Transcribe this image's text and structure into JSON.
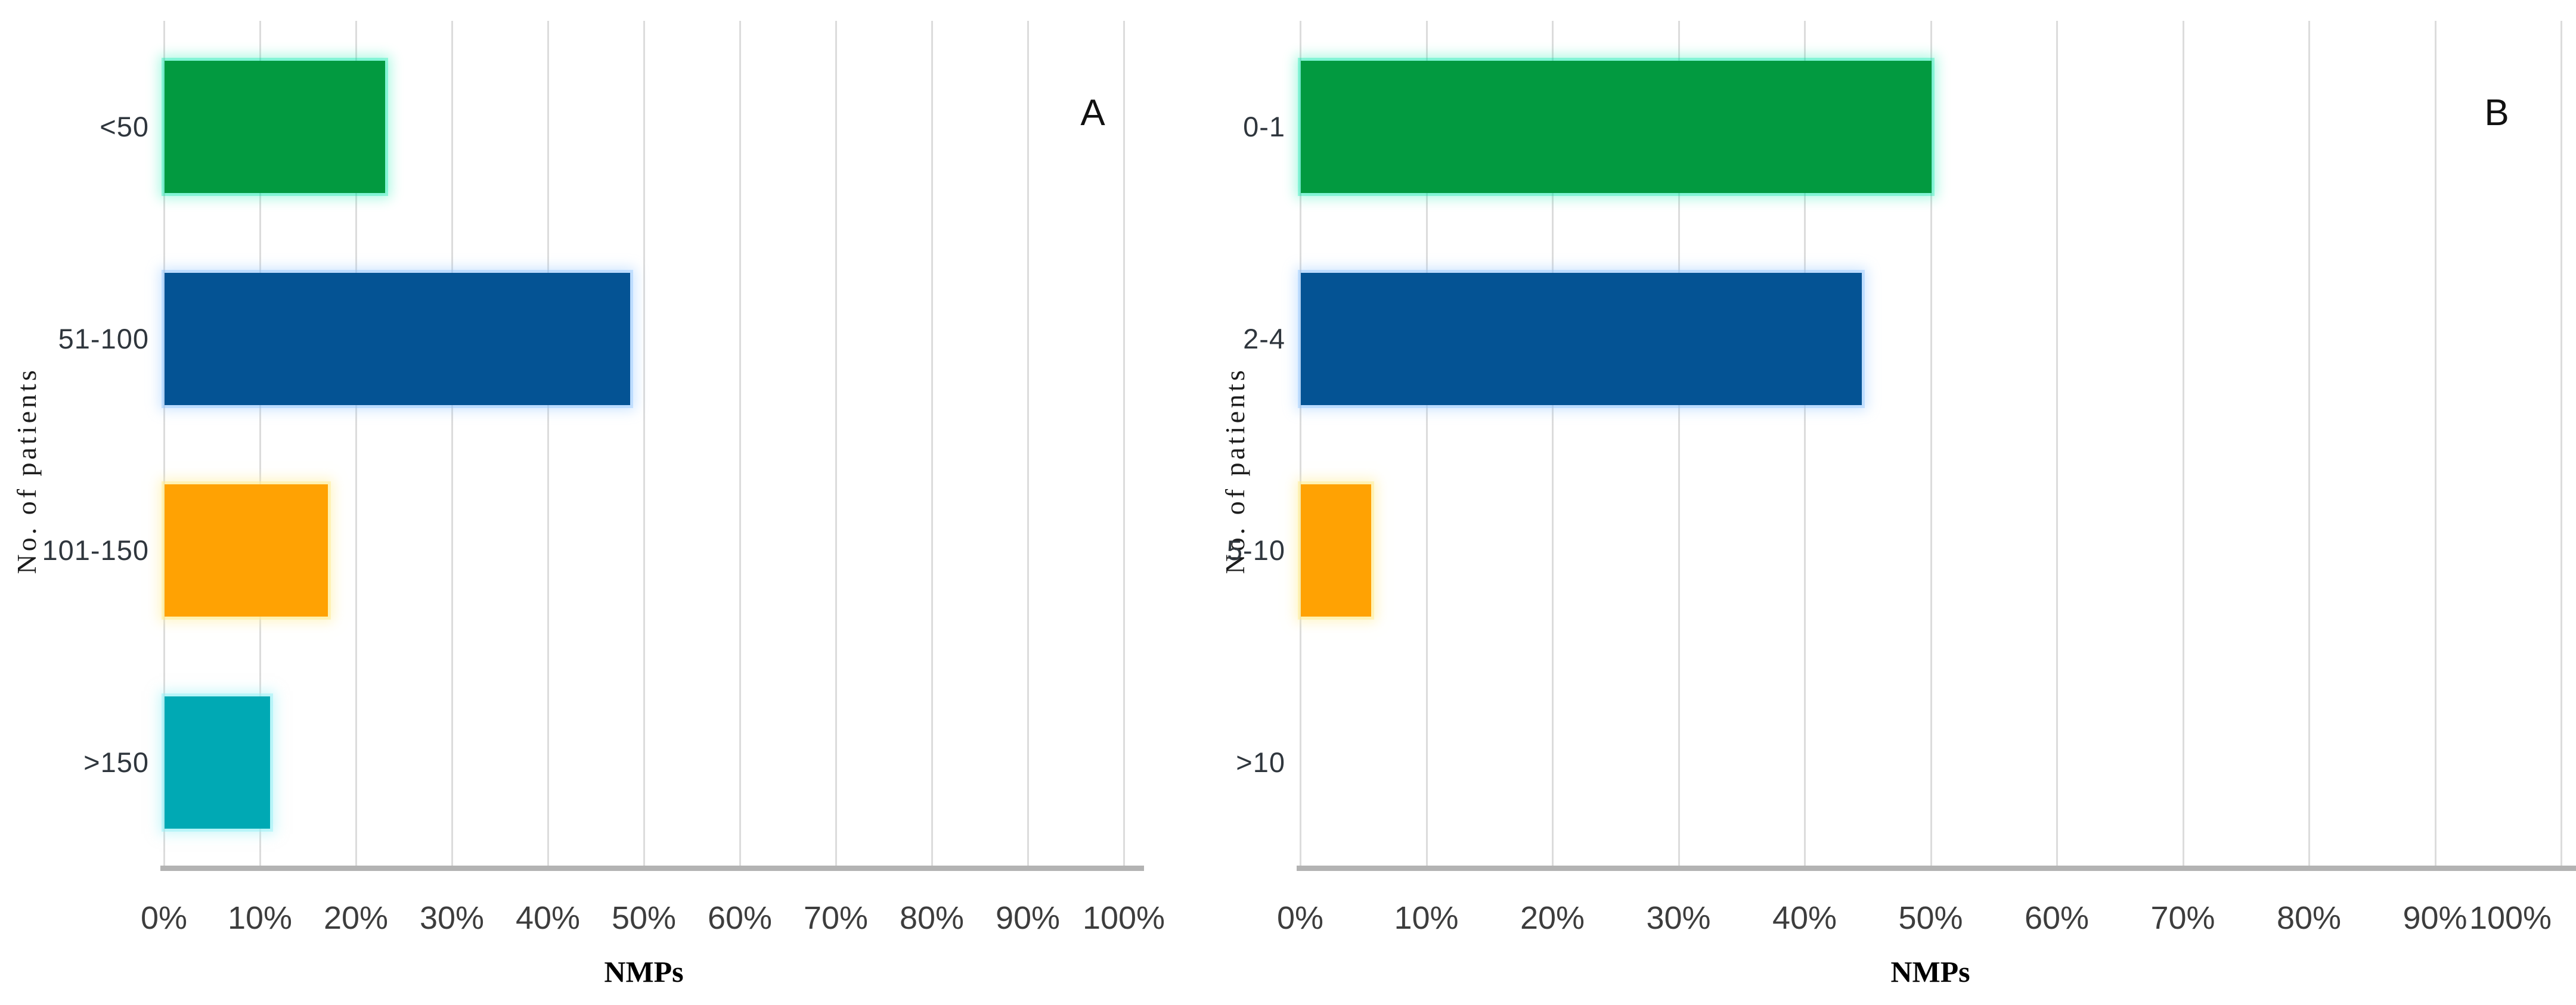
{
  "figure": {
    "background": "#ffffff",
    "gridline_color": "#dcdcdc",
    "axis_line_color": "#b3b3b3",
    "tick_text_color": "#3d3d3d",
    "category_text_color": "#2f363d"
  },
  "chart_data": [
    {
      "type": "bar",
      "orientation": "horizontal",
      "panel_label": "A",
      "title": "",
      "xlabel": "NMPs",
      "ylabel": "No. of patients",
      "categories": [
        "<50",
        "51-100",
        "101-150",
        ">150"
      ],
      "values": [
        23,
        48.5,
        17,
        11
      ],
      "colors": [
        "#029A40",
        "#045394",
        "#FFA203",
        "#00A9B4"
      ],
      "x_ticks": [
        "0%",
        "10%",
        "20%",
        "30%",
        "40%",
        "50%",
        "60%",
        "70%",
        "80%",
        "90%",
        "100%"
      ],
      "xlim": [
        0,
        100
      ],
      "grid": true,
      "legend": "none"
    },
    {
      "type": "bar",
      "orientation": "horizontal",
      "panel_label": "B",
      "title": "",
      "xlabel": "NMPs",
      "ylabel": "No. of patients",
      "categories": [
        "0-1",
        "2-4",
        "5-10",
        ">10"
      ],
      "values": [
        50,
        44.5,
        5.6,
        0
      ],
      "colors": [
        "#029A40",
        "#045394",
        "#FFA203",
        "#00A9B4"
      ],
      "x_ticks": [
        "0%",
        "10%",
        "20%",
        "30%",
        "40%",
        "50%",
        "60%",
        "70%",
        "80%",
        "90%",
        "100%"
      ],
      "xlim": [
        0,
        100
      ],
      "grid": true,
      "legend": "none"
    }
  ]
}
